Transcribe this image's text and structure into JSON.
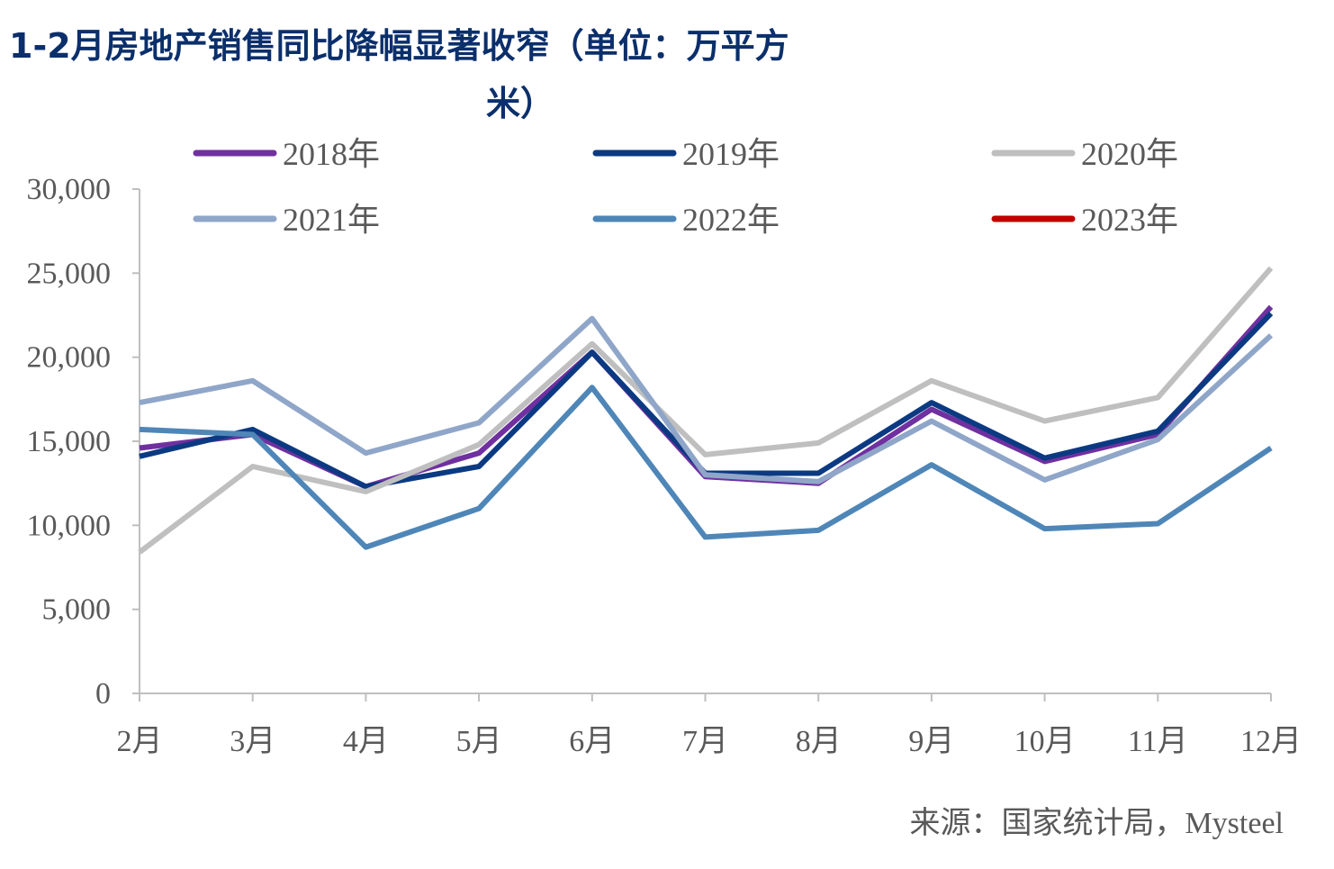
{
  "chart_data": {
    "type": "line",
    "title_lines": [
      "1-2月房地产销售同比降幅显著收窄（单位：万平方",
      "米）"
    ],
    "categories": [
      "2月",
      "3月",
      "4月",
      "5月",
      "6月",
      "7月",
      "8月",
      "9月",
      "10月",
      "11月",
      "12月"
    ],
    "ylim": [
      0,
      30000
    ],
    "yticks": [
      0,
      5000,
      10000,
      15000,
      20000,
      25000,
      30000
    ],
    "ytick_labels": [
      "0",
      "5,000",
      "10,000",
      "15,000",
      "20,000",
      "25,000",
      "30,000"
    ],
    "grid": false,
    "legend_position": "top",
    "source": "来源：国家统计局，Mysteel",
    "series": [
      {
        "name": "2018年",
        "color": "#7030a0",
        "values": [
          14600,
          15400,
          12300,
          14300,
          20300,
          12900,
          12500,
          16900,
          13800,
          15400,
          23000
        ]
      },
      {
        "name": "2019年",
        "color": "#0b3a82",
        "values": [
          14100,
          15700,
          12300,
          13500,
          20300,
          13100,
          13100,
          17300,
          14000,
          15600,
          22600
        ]
      },
      {
        "name": "2020年",
        "color": "#bfbfbf",
        "values": [
          8400,
          13500,
          12000,
          14800,
          20800,
          14200,
          14900,
          18600,
          16200,
          17600,
          25300
        ]
      },
      {
        "name": "2021年",
        "color": "#8fa6c9",
        "values": [
          17300,
          18600,
          14300,
          16100,
          22300,
          13000,
          12600,
          16200,
          12700,
          15100,
          21300
        ]
      },
      {
        "name": "2022年",
        "color": "#4f86b8",
        "values": [
          15700,
          15400,
          8700,
          11000,
          18200,
          9300,
          9700,
          13600,
          9800,
          10100,
          14600
        ]
      },
      {
        "name": "2023年",
        "color": "#c00000",
        "values": [
          null,
          null,
          null,
          null,
          null,
          null,
          null,
          null,
          null,
          null,
          null
        ]
      }
    ]
  }
}
